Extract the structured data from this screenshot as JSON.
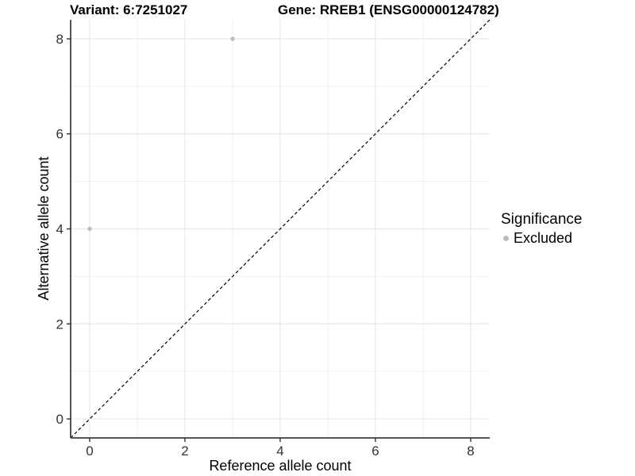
{
  "header": {
    "variant_title": "Variant: 6:7251027",
    "gene_title": "Gene: RREB1 (ENSG00000124782)"
  },
  "chart_data": {
    "type": "scatter",
    "titles": {
      "left": "Variant: 6:7251027",
      "right": "Gene: RREB1 (ENSG00000124782)"
    },
    "xlabel": "Reference allele count",
    "ylabel": "Alternative allele count",
    "xlim": [
      -0.4,
      8.4
    ],
    "ylim": [
      -0.4,
      8.4
    ],
    "x_ticks": [
      0,
      2,
      4,
      6,
      8
    ],
    "y_ticks": [
      0,
      2,
      4,
      6,
      8
    ],
    "grid": {
      "on": true,
      "unit_interval": 1,
      "major_interval": 2,
      "major_color": "#e4e4e4",
      "minor_color": "#f1f1f1"
    },
    "reference_line": {
      "description": "identity line y = x",
      "slope": 1,
      "intercept": 0,
      "style": "dashed",
      "color": "#000000"
    },
    "series": [
      {
        "name": "Excluded",
        "color": "#bdbdbd",
        "points": [
          [
            0,
            4
          ],
          [
            3,
            8
          ]
        ]
      }
    ],
    "legend": {
      "title": "Significance",
      "position": "right",
      "items": [
        {
          "label": "Excluded",
          "color": "#bdbdbd"
        }
      ]
    },
    "style": {
      "axis_line_color": "#404040",
      "tick_color": "#333333",
      "tick_label_color": "#333333",
      "background": "#ffffff",
      "point_radius": 2.7
    }
  }
}
